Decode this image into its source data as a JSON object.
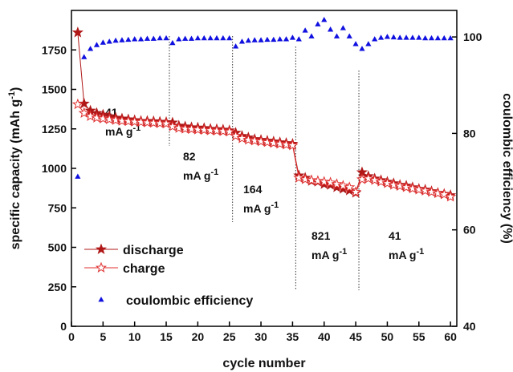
{
  "chart_data": {
    "type": "line",
    "x_label": "cycle number",
    "y_label": {
      "text": "specific capacity (mAh g",
      "sup": "-1",
      "end": ")"
    },
    "y2_label": "coulombic efficiency (%)",
    "x": [
      1,
      2,
      3,
      4,
      5,
      6,
      7,
      8,
      9,
      10,
      11,
      12,
      13,
      14,
      15,
      16,
      17,
      18,
      19,
      20,
      21,
      22,
      23,
      24,
      25,
      26,
      27,
      28,
      29,
      30,
      31,
      32,
      33,
      34,
      35,
      36,
      37,
      38,
      39,
      40,
      41,
      42,
      43,
      44,
      45,
      46,
      47,
      48,
      49,
      50,
      51,
      52,
      53,
      54,
      55,
      56,
      57,
      58,
      59,
      60
    ],
    "series": [
      {
        "name": "discharge",
        "color": "#b01818",
        "marker": "filled-star",
        "values": [
          1860,
          1410,
          1365,
          1350,
          1340,
          1330,
          1320,
          1315,
          1310,
          1305,
          1300,
          1300,
          1298,
          1295,
          1293,
          1290,
          1270,
          1265,
          1260,
          1258,
          1255,
          1250,
          1248,
          1245,
          1240,
          1225,
          1205,
          1195,
          1185,
          1180,
          1175,
          1170,
          1165,
          1160,
          1155,
          955,
          940,
          920,
          915,
          900,
          895,
          880,
          870,
          860,
          845,
          975,
          950,
          935,
          925,
          915,
          905,
          895,
          890,
          880,
          870,
          865,
          855,
          845,
          838,
          830
        ]
      },
      {
        "name": "charge",
        "color": "#e03030",
        "marker": "open-star",
        "values": [
          1405,
          1350,
          1330,
          1320,
          1315,
          1310,
          1305,
          1300,
          1298,
          1295,
          1293,
          1290,
          1288,
          1285,
          1283,
          1265,
          1255,
          1250,
          1248,
          1245,
          1243,
          1240,
          1238,
          1235,
          1232,
          1205,
          1190,
          1180,
          1175,
          1170,
          1165,
          1160,
          1155,
          1150,
          1145,
          940,
          930,
          925,
          920,
          915,
          910,
          900,
          890,
          880,
          850,
          930,
          935,
          925,
          915,
          905,
          895,
          888,
          880,
          872,
          865,
          858,
          850,
          842,
          835,
          820
        ]
      },
      {
        "name": "coulombic efficiency",
        "color": "#1010e0",
        "marker": "triangle",
        "axis": "y2",
        "values": [
          71,
          95.8,
          97.5,
          98.3,
          98.8,
          99,
          99.2,
          99.3,
          99.4,
          99.5,
          99.5,
          99.6,
          99.6,
          99.7,
          99.7,
          98.7,
          99.5,
          99.6,
          99.6,
          99.7,
          99.7,
          99.7,
          99.7,
          99.7,
          99.7,
          98,
          99,
          99.2,
          99.3,
          99.3,
          99.4,
          99.4,
          99.5,
          99.5,
          99.8,
          99.5,
          101.3,
          100.1,
          102.6,
          103.5,
          101.5,
          100.1,
          101.8,
          100.1,
          98.5,
          97.5,
          98.5,
          99.5,
          99.8,
          100,
          99.9,
          99.8,
          99.8,
          99.8,
          99.8,
          99.7,
          99.7,
          99.7,
          99.7,
          99.7
        ]
      }
    ],
    "xlim": [
      0,
      61
    ],
    "xticks": [
      0,
      5,
      10,
      15,
      20,
      25,
      30,
      35,
      40,
      45,
      50,
      55,
      60
    ],
    "ylim": [
      0,
      2000
    ],
    "yticks": [
      0,
      250,
      500,
      750,
      1000,
      1250,
      1500,
      1750
    ],
    "y2lim": [
      40,
      105.5
    ],
    "y2ticks": [
      40,
      60,
      80,
      100
    ],
    "dividers": [
      15.5,
      25.5,
      35.5,
      45.5
    ],
    "annotations": [
      {
        "rate": "41",
        "unit": "mA g",
        "sup": "-1"
      },
      {
        "rate": "82",
        "unit": "mA g",
        "sup": "-1"
      },
      {
        "rate": "164",
        "unit": "mA g",
        "sup": "-1"
      },
      {
        "rate": "821",
        "unit": "mA g",
        "sup": "-1"
      },
      {
        "rate": "41",
        "unit": "mA g",
        "sup": "-1"
      }
    ]
  }
}
